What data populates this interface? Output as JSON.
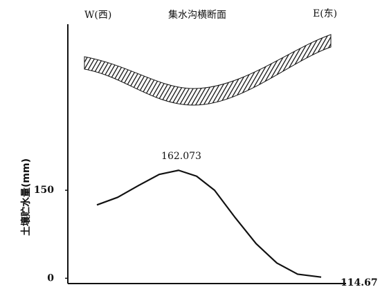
{
  "chart_data": {
    "type": "line",
    "title": "集水沟横断面",
    "west_label": "W(西)",
    "east_label": "E(东)",
    "y_label": "土壤贮水量(mm)",
    "annotations": [
      "162.073",
      "114.67"
    ],
    "x": [
      10,
      17.5,
      25,
      32.5,
      39.5,
      46,
      52.5,
      60,
      67.5,
      75,
      82.5,
      91
    ],
    "values": [
      125,
      138,
      158,
      177,
      184,
      174,
      150,
      103,
      59,
      26,
      7,
      2
    ],
    "color": "#111111",
    "xlim": [
      0,
      100
    ],
    "ylim": [
      -9,
      433
    ],
    "yticks": [
      0,
      150
    ]
  }
}
